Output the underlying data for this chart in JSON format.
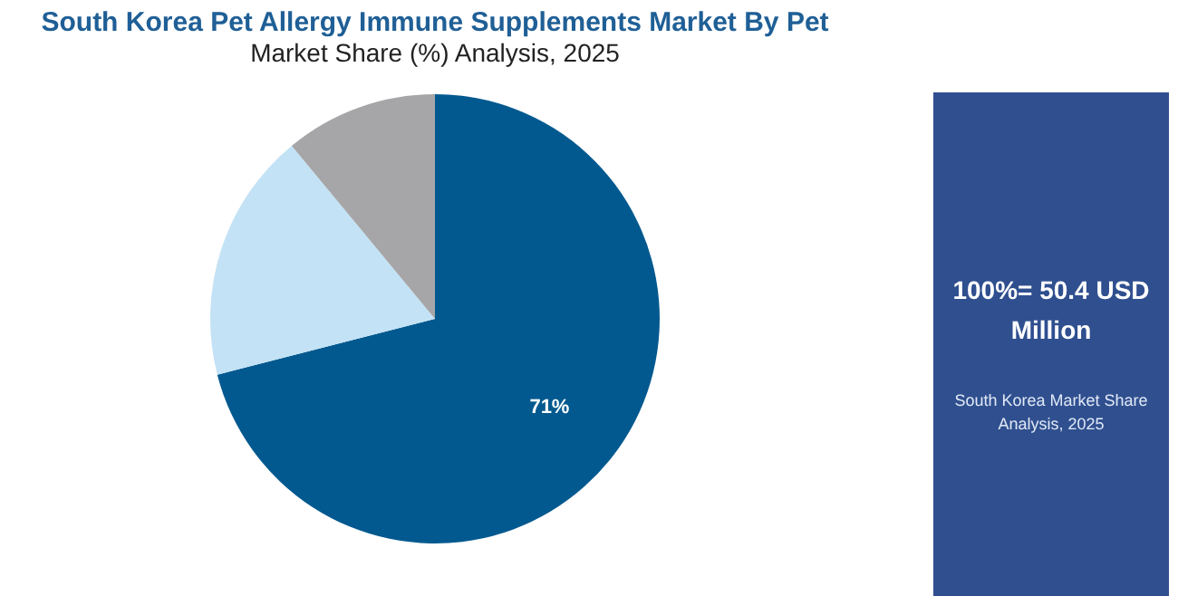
{
  "chart_data": {
    "type": "pie",
    "title": "South Korea Pet Allergy Immune Supplements Market By Pet",
    "subtitle": "Market Share (%) Analysis, 2025",
    "categories": [
      null,
      null,
      null
    ],
    "values": [
      71,
      18,
      11
    ],
    "colors": [
      "#02598f",
      "#c3e2f5",
      "#a6a6a8"
    ],
    "value_labels": [
      "71%",
      null,
      null
    ],
    "legend": false,
    "annotations": [
      "100%= 50.4 USD Million",
      "South Korea Market Share Analysis, 2025"
    ]
  }
}
